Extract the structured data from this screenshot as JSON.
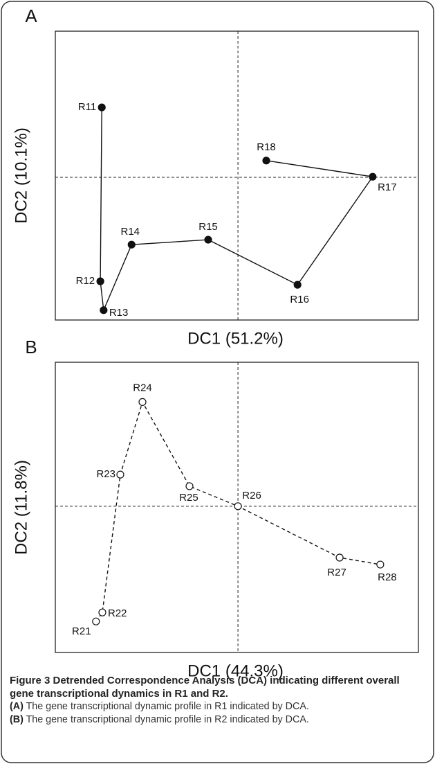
{
  "chart_data": [
    {
      "type": "line",
      "panel_label": "A",
      "x_label": "DC1 (51.2%)",
      "y_label": "DC2 (10.1%)",
      "point_labels": [
        "R11",
        "R12",
        "R13",
        "R14",
        "R15",
        "R16",
        "R17",
        "R18"
      ],
      "x": [
        12.8,
        12.4,
        13.3,
        21.0,
        42.1,
        66.7,
        87.4,
        58.1
      ],
      "values": [
        73.6,
        13.4,
        3.4,
        26.1,
        27.8,
        12.2,
        49.6,
        55.2
      ],
      "line_style": "solid",
      "marker": "filled",
      "color": "#111111",
      "xlim": [
        0,
        100
      ],
      "ylim": [
        0,
        100
      ],
      "reference_x": 50.3,
      "reference_y": 49.4
    },
    {
      "type": "line",
      "panel_label": "B",
      "x_label": "DC1 (44.3%)",
      "y_label": "DC2 (11.8%)",
      "point_labels": [
        "R21",
        "R22",
        "R23",
        "R24",
        "R25",
        "R26",
        "R27",
        "R28"
      ],
      "x": [
        11.2,
        12.95,
        17.9,
        24.0,
        36.95,
        50.3,
        78.3,
        89.5
      ],
      "values": [
        10.7,
        13.8,
        61.3,
        86.3,
        57.3,
        50.4,
        32.7,
        30.3
      ],
      "line_style": "dashed",
      "marker": "open",
      "color": "#111111",
      "xlim": [
        0,
        100
      ],
      "ylim": [
        0,
        100
      ],
      "reference_x": 50.3,
      "reference_y": 50.4
    }
  ],
  "caption": {
    "title": "Figure 3 Detrended Correspondence Analysis (DCA) indicating different overall gene transcriptional dynamics in R1 and R2.",
    "items": [
      {
        "label": "(A)",
        "text": "The gene transcriptional dynamic profile in R1 indicated by DCA."
      },
      {
        "label": "(B)",
        "text": "The gene transcriptional dynamic profile in R2 indicated by DCA."
      }
    ]
  }
}
